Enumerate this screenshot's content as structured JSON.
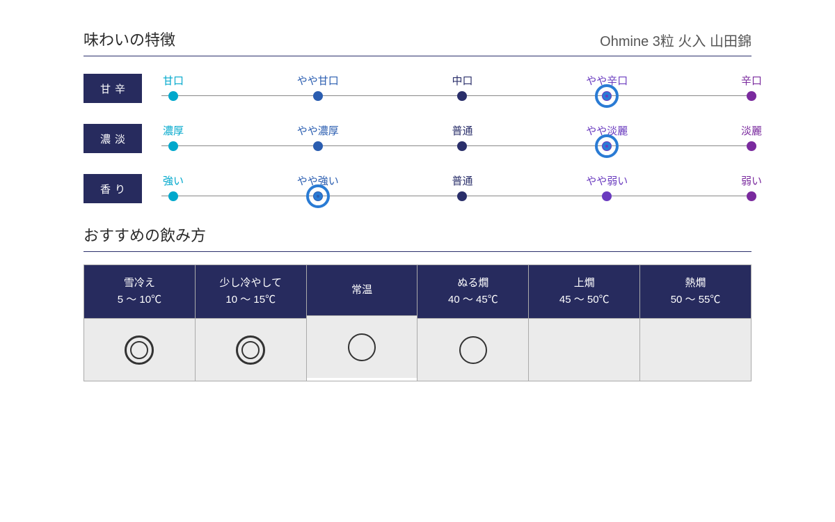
{
  "colors": {
    "badge_bg": "#272b5e",
    "ring": "#2a7bd4",
    "divider": "#2a2f6a",
    "scale_line": "#888888"
  },
  "header": {
    "title": "味わいの特徴",
    "product": "Ohmine 3粒 火入 山田錦"
  },
  "scales": [
    {
      "name": "甘辛",
      "selected": 3,
      "points": [
        {
          "label": "甘口",
          "color": "#00a8cc",
          "text_color": "#00a8cc"
        },
        {
          "label": "やや甘口",
          "color": "#2a5db0",
          "text_color": "#2a5db0"
        },
        {
          "label": "中口",
          "color": "#2a2f6a",
          "text_color": "#2a2f6a"
        },
        {
          "label": "やや辛口",
          "color": "#6a3bbf",
          "text_color": "#6a3bbf"
        },
        {
          "label": "辛口",
          "color": "#7a2a9e",
          "text_color": "#7a2a9e"
        }
      ]
    },
    {
      "name": "濃淡",
      "selected": 3,
      "points": [
        {
          "label": "濃厚",
          "color": "#00a8cc",
          "text_color": "#00a8cc"
        },
        {
          "label": "やや濃厚",
          "color": "#2a5db0",
          "text_color": "#2a5db0"
        },
        {
          "label": "普通",
          "color": "#2a2f6a",
          "text_color": "#2a2f6a"
        },
        {
          "label": "やや淡麗",
          "color": "#6a3bbf",
          "text_color": "#6a3bbf"
        },
        {
          "label": "淡麗",
          "color": "#7a2a9e",
          "text_color": "#7a2a9e"
        }
      ]
    },
    {
      "name": "香り",
      "selected": 1,
      "points": [
        {
          "label": "強い",
          "color": "#00a8cc",
          "text_color": "#00a8cc"
        },
        {
          "label": "やや強い",
          "color": "#2a5db0",
          "text_color": "#2a5db0"
        },
        {
          "label": "普通",
          "color": "#2a2f6a",
          "text_color": "#2a2f6a"
        },
        {
          "label": "やや弱い",
          "color": "#6a3bbf",
          "text_color": "#6a3bbf"
        },
        {
          "label": "弱い",
          "color": "#7a2a9e",
          "text_color": "#7a2a9e"
        }
      ]
    }
  ],
  "serving": {
    "title": "おすすめの飲み方",
    "columns": [
      {
        "name": "雪冷え",
        "range": "5 〜 10℃",
        "mark": "double"
      },
      {
        "name": "少し冷やして",
        "range": "10 〜 15℃",
        "mark": "double"
      },
      {
        "name": "常温",
        "range": "",
        "mark": "single"
      },
      {
        "name": "ぬる燗",
        "range": "40 〜 45℃",
        "mark": "single"
      },
      {
        "name": "上燗",
        "range": "45 〜 50℃",
        "mark": ""
      },
      {
        "name": "熱燗",
        "range": "50 〜 55℃",
        "mark": ""
      }
    ]
  },
  "scale_positions_pct": [
    2,
    26.5,
    51,
    75.5,
    100
  ]
}
